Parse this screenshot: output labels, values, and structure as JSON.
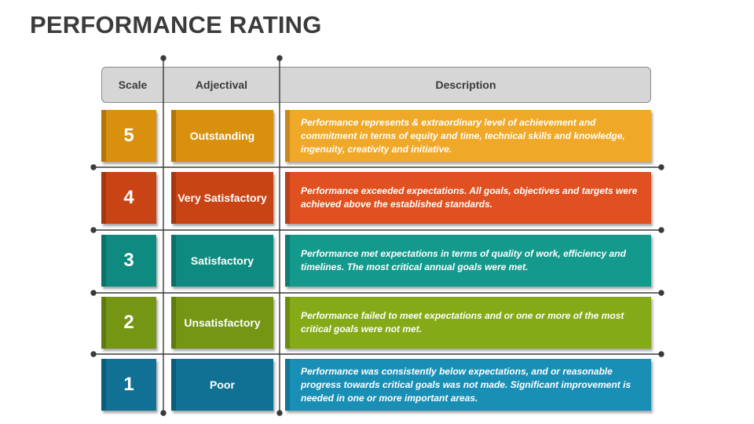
{
  "title": "PERFORMANCE RATING",
  "headers": {
    "scale": "Scale",
    "adjectival": "Adjectival",
    "description": "Description"
  },
  "rows": [
    {
      "scale": "5",
      "adjectival": "Outstanding",
      "description": "Performance represents & extraordinary level of achievement and commitment in terms of equity and time, technical skills and knowledge, ingenuity, creativity and initiative.",
      "color_dark": "#c98410",
      "color_mid": "#d9900f",
      "color_light": "#f0a829"
    },
    {
      "scale": "4",
      "adjectival": "Very Satisfactory",
      "description": "Performance exceeded expectations. All goals, objectives and targets were achieved above the established standards.",
      "color_dark": "#b83d14",
      "color_mid": "#c94414",
      "color_light": "#e05020"
    },
    {
      "scale": "3",
      "adjectival": "Satisfactory",
      "description": "Performance met expectations in terms of quality of work, efficiency and timelines. The most critical annual goals were met.",
      "color_dark": "#0d7c74",
      "color_mid": "#0f8a80",
      "color_light": "#14998d"
    },
    {
      "scale": "2",
      "adjectival": "Unsatisfactory",
      "description": "Performance failed to meet expectations and or one or more of the most critical goals were not met.",
      "color_dark": "#6a8511",
      "color_mid": "#759514",
      "color_light": "#85aa18"
    },
    {
      "scale": "1",
      "adjectival": "Poor",
      "description": "Performance was consistently below expectations, and or reasonable progress towards critical goals was not made. Significant improvement is needed in one or more important areas.",
      "color_dark": "#0f6585",
      "color_mid": "#117194",
      "color_light": "#1a8fb6"
    }
  ]
}
